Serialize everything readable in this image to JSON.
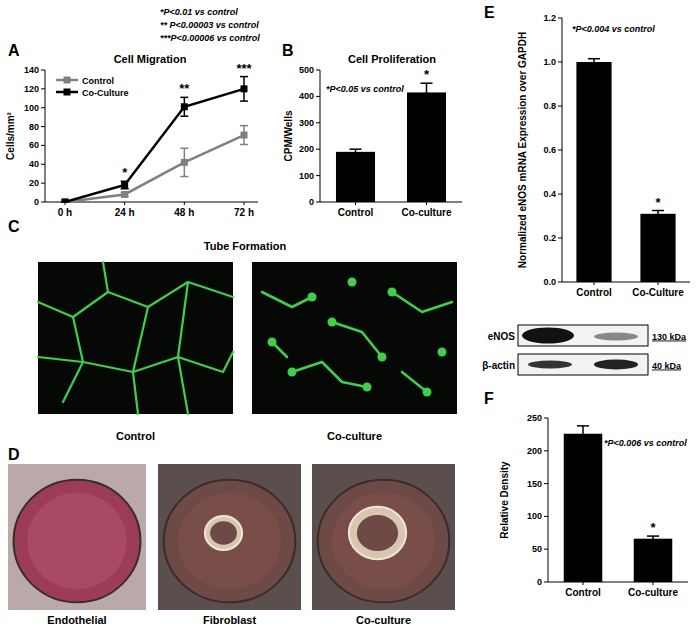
{
  "chart_data": [
    {
      "type": "line",
      "panel_label": "A",
      "title": "Cell Migration",
      "ylabel": "Cells/mm²",
      "annotations": [
        "*P<0.01 vs control",
        "** P<0.00003 vs control",
        "***P<0.00006 vs control"
      ],
      "categories": [
        "0 h",
        "24 h",
        "48 h",
        "72 h"
      ],
      "series": [
        {
          "name": "Control",
          "color": "#808080",
          "marker": "square",
          "values": [
            0,
            8,
            42,
            71
          ],
          "errors": [
            0,
            2,
            15,
            10
          ]
        },
        {
          "name": "Co-Culture",
          "color": "#000000",
          "marker": "square",
          "values": [
            0,
            18,
            101,
            120
          ],
          "errors": [
            0,
            4,
            10,
            13
          ]
        }
      ],
      "significance": [
        null,
        "*",
        "**",
        "***"
      ],
      "ylim": [
        0,
        140
      ],
      "yticks": [
        0,
        20,
        40,
        60,
        80,
        100,
        120,
        140
      ],
      "legend": "top-left"
    },
    {
      "type": "bar",
      "panel_label": "B",
      "title": "Cell Proliferation",
      "ylabel": "CPM/Wells",
      "annotations": [
        "*P<0.05 vs control"
      ],
      "categories": [
        "Control",
        "Co-culture"
      ],
      "values": [
        190,
        415
      ],
      "errors": [
        10,
        35
      ],
      "significance": [
        null,
        "*"
      ],
      "color": "#000000",
      "ylim": [
        0,
        500
      ],
      "yticks": [
        0,
        100,
        200,
        300,
        400,
        500
      ]
    },
    {
      "type": "bar",
      "panel_label": "E",
      "ylabel": "Normalized eNOS mRNA Expression over GAPDH",
      "annotations": [
        "*P<0.004 vs control"
      ],
      "categories": [
        "Control",
        "Co-Culture"
      ],
      "values": [
        1.0,
        0.31
      ],
      "errors": [
        0.015,
        0.015
      ],
      "significance": [
        null,
        "*"
      ],
      "color": "#000000",
      "ylim": [
        0,
        1.2
      ],
      "yticks": [
        {
          "value": 0,
          "label": "0.0"
        },
        0.2,
        0.4,
        0.6,
        0.8,
        {
          "value": 1,
          "label": "1.0"
        },
        1.2
      ]
    },
    {
      "type": "bar",
      "panel_label": "F",
      "ylabel": "Relative Density",
      "annotations": [
        "*P<0.006 vs control"
      ],
      "categories": [
        "Control",
        "Co-culture"
      ],
      "values": [
        226,
        66
      ],
      "errors": [
        12,
        4
      ],
      "significance": [
        null,
        "*"
      ],
      "color": "#000000",
      "ylim": [
        0,
        250
      ],
      "yticks": [
        0,
        50,
        100,
        150,
        200,
        250
      ],
      "blot": {
        "bands": [
          {
            "name": "eNOS",
            "size": "130 kDa"
          },
          {
            "name": "β-actin",
            "size": "40 kDa"
          }
        ]
      }
    }
  ],
  "figure_panels": [
    {
      "panel_label": "C",
      "title": "Tube Formation",
      "images": [
        "Control",
        "Co-culture"
      ]
    },
    {
      "panel_label": "D",
      "images": [
        "Endothelial",
        "Fibroblast",
        "Co-culture"
      ]
    }
  ]
}
